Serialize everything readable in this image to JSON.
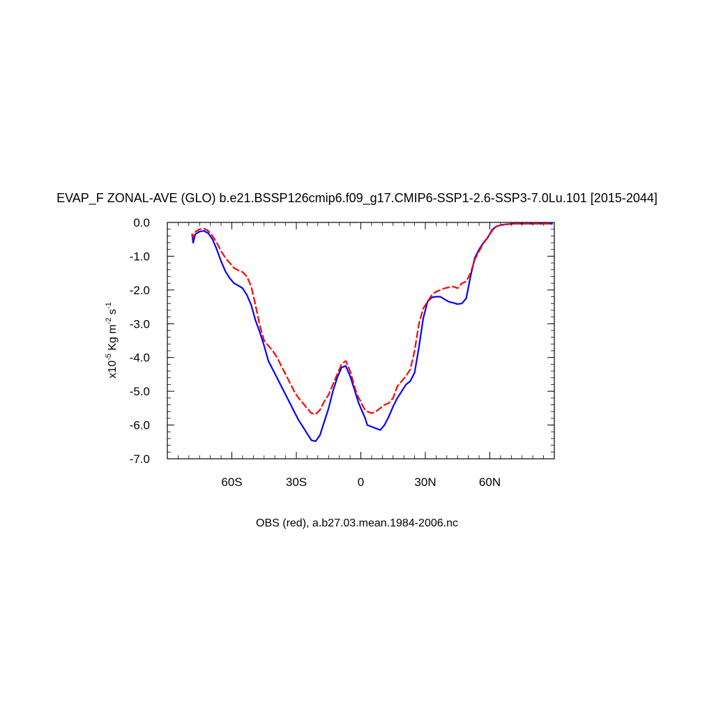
{
  "chart_data": {
    "type": "line",
    "title": "EVAP_F ZONAL-AVE (GLO) b.e21.BSSP126cmip6.f09_g17.CMIP6-SSP1-2.6-SSP3-7.0Lu.101 [2015-2044]",
    "ylabel": {
      "base": "x10",
      "exp1": "-5",
      "mid": " Kg m",
      "exp2": "-2",
      "mid2": " s",
      "exp3": "-1"
    },
    "xlabel": "",
    "footer": "OBS (red), a.b27.03.mean.1984-2006.nc",
    "xlim": [
      -90,
      90
    ],
    "ylim": [
      -7.0,
      0.0
    ],
    "x_ticks": [
      {
        "value": -60,
        "label": "60S"
      },
      {
        "value": -30,
        "label": "30S"
      },
      {
        "value": 0,
        "label": "0"
      },
      {
        "value": 30,
        "label": "30N"
      },
      {
        "value": 60,
        "label": "60N"
      }
    ],
    "y_ticks": [
      {
        "value": 0.0,
        "label": "0.0"
      },
      {
        "value": -1.0,
        "label": "-1.0"
      },
      {
        "value": -2.0,
        "label": "-2.0"
      },
      {
        "value": -3.0,
        "label": "-3.0"
      },
      {
        "value": -4.0,
        "label": "-4.0"
      },
      {
        "value": -5.0,
        "label": "-5.0"
      },
      {
        "value": -6.0,
        "label": "-6.0"
      },
      {
        "value": -7.0,
        "label": "-7.0"
      }
    ],
    "grid": false,
    "legend": "none",
    "series": [
      {
        "color": "#0000ff",
        "dash": "solid",
        "x": [
          -78.5,
          -78,
          -77,
          -75,
          -73,
          -71,
          -69,
          -67,
          -65,
          -63,
          -61,
          -59,
          -57,
          -55,
          -53,
          -51,
          -49,
          -47,
          -45,
          -43,
          -41,
          -39,
          -37,
          -35,
          -33,
          -31,
          -29,
          -27,
          -25,
          -23,
          -21,
          -19,
          -17,
          -15,
          -13,
          -11,
          -9,
          -7,
          -5,
          -3,
          -2,
          -1,
          0,
          1,
          2,
          3,
          5,
          7,
          9,
          11,
          13,
          15,
          17,
          19,
          21,
          23,
          25,
          27,
          29,
          31,
          33,
          35,
          37,
          39,
          41,
          43,
          45,
          47,
          49,
          51,
          53,
          55,
          57,
          59,
          61,
          63,
          65,
          67,
          69,
          71,
          73,
          75,
          77,
          79,
          81,
          83,
          85,
          87,
          89
        ],
        "y": [
          -0.35,
          -0.6,
          -0.35,
          -0.27,
          -0.25,
          -0.32,
          -0.5,
          -0.8,
          -1.15,
          -1.45,
          -1.65,
          -1.8,
          -1.87,
          -1.95,
          -2.15,
          -2.45,
          -2.9,
          -3.25,
          -3.65,
          -4.1,
          -4.35,
          -4.6,
          -4.85,
          -5.1,
          -5.35,
          -5.6,
          -5.85,
          -6.05,
          -6.25,
          -6.45,
          -6.48,
          -6.3,
          -5.9,
          -5.5,
          -5.0,
          -4.6,
          -4.3,
          -4.25,
          -4.55,
          -4.95,
          -5.15,
          -5.35,
          -5.5,
          -5.65,
          -5.8,
          -6.0,
          -6.05,
          -6.1,
          -6.15,
          -6.0,
          -5.75,
          -5.45,
          -5.2,
          -5.0,
          -4.8,
          -4.7,
          -4.45,
          -3.7,
          -2.85,
          -2.35,
          -2.22,
          -2.2,
          -2.2,
          -2.28,
          -2.35,
          -2.38,
          -2.42,
          -2.4,
          -2.25,
          -1.6,
          -1.05,
          -0.8,
          -0.6,
          -0.45,
          -0.22,
          -0.12,
          -0.08,
          -0.06,
          -0.05,
          -0.04,
          -0.04,
          -0.04,
          -0.04,
          -0.04,
          -0.04,
          -0.04,
          -0.04,
          -0.04,
          -0.04
        ]
      },
      {
        "color": "#ff0000",
        "dash": "dashed",
        "x": [
          -78.5,
          -78,
          -77,
          -75,
          -73,
          -71,
          -69,
          -67,
          -65,
          -63,
          -61,
          -59,
          -57,
          -55,
          -53,
          -51,
          -49,
          -47,
          -45,
          -43,
          -41,
          -39,
          -37,
          -35,
          -33,
          -31,
          -29,
          -27,
          -25,
          -23,
          -21,
          -19,
          -17,
          -15,
          -13,
          -11,
          -9,
          -7,
          -5,
          -3,
          -2,
          -1,
          0,
          1,
          2,
          3,
          5,
          7,
          9,
          11,
          13,
          15,
          17,
          19,
          21,
          23,
          25,
          27,
          29,
          31,
          33,
          35,
          37,
          39,
          41,
          43,
          45,
          47,
          49,
          51,
          53,
          55,
          57,
          59,
          61,
          63,
          65,
          67,
          69,
          71,
          73,
          75,
          77,
          79,
          81,
          83,
          85,
          87,
          89
        ],
        "y": [
          -0.35,
          -0.45,
          -0.28,
          -0.2,
          -0.18,
          -0.25,
          -0.4,
          -0.6,
          -0.85,
          -1.05,
          -1.2,
          -1.35,
          -1.42,
          -1.47,
          -1.6,
          -1.9,
          -2.45,
          -3.05,
          -3.5,
          -3.65,
          -3.8,
          -4.0,
          -4.25,
          -4.5,
          -4.75,
          -5.0,
          -5.2,
          -5.35,
          -5.5,
          -5.65,
          -5.68,
          -5.55,
          -5.3,
          -5.1,
          -4.8,
          -4.5,
          -4.2,
          -4.1,
          -4.4,
          -4.85,
          -5.05,
          -5.2,
          -5.3,
          -5.45,
          -5.55,
          -5.6,
          -5.65,
          -5.6,
          -5.5,
          -5.4,
          -5.35,
          -5.2,
          -4.85,
          -4.7,
          -4.55,
          -4.35,
          -3.8,
          -3.0,
          -2.55,
          -2.35,
          -2.15,
          -2.05,
          -2.0,
          -1.95,
          -1.92,
          -1.9,
          -1.95,
          -1.8,
          -1.75,
          -1.5,
          -1.1,
          -0.85,
          -0.62,
          -0.45,
          -0.25,
          -0.12,
          -0.08,
          -0.06,
          -0.05,
          -0.04,
          -0.04,
          -0.04,
          -0.04,
          -0.04,
          -0.04,
          -0.04,
          -0.04,
          -0.04,
          -0.04
        ]
      }
    ]
  }
}
